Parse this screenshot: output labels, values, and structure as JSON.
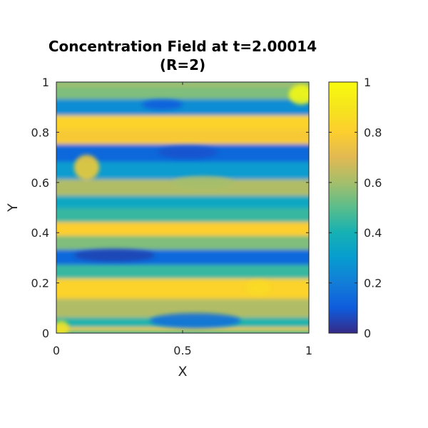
{
  "chart_data": {
    "type": "heatmap",
    "title": "Concentration Field at t=2.00014",
    "subtitle": "(R=2)",
    "xlabel": "X",
    "ylabel": "Y",
    "xlim": [
      0,
      1
    ],
    "ylim": [
      0,
      1
    ],
    "xticks": [
      "0",
      "0.5",
      "1"
    ],
    "yticks": [
      "0",
      "0.2",
      "0.4",
      "0.6",
      "0.8",
      "1"
    ],
    "colorbar": {
      "range": [
        0,
        1
      ],
      "ticks": [
        "0",
        "0.2",
        "0.4",
        "0.6",
        "0.8",
        "1"
      ],
      "colormap": "parula"
    },
    "grid": false,
    "field_bands": [
      {
        "y": 0.01,
        "c": 0.8
      },
      {
        "y": 0.04,
        "c": 0.42
      },
      {
        "y": 0.09,
        "c": 0.62
      },
      {
        "y": 0.19,
        "c": 0.82
      },
      {
        "y": 0.25,
        "c": 0.45
      },
      {
        "y": 0.3,
        "c": 0.14
      },
      {
        "y": 0.37,
        "c": 0.55
      },
      {
        "y": 0.41,
        "c": 0.8
      },
      {
        "y": 0.48,
        "c": 0.45
      },
      {
        "y": 0.52,
        "c": 0.35
      },
      {
        "y": 0.58,
        "c": 0.62
      },
      {
        "y": 0.65,
        "c": 0.3
      },
      {
        "y": 0.72,
        "c": 0.14
      },
      {
        "y": 0.79,
        "c": 0.78
      },
      {
        "y": 0.84,
        "c": 0.82
      },
      {
        "y": 0.9,
        "c": 0.25
      },
      {
        "y": 0.97,
        "c": 0.55
      },
      {
        "y": 1.0,
        "c": 0.6
      }
    ],
    "features": [
      {
        "x": 0.23,
        "y": 0.31,
        "c": 0.05,
        "sx": 0.16,
        "sy": 0.025
      },
      {
        "x": 0.52,
        "y": 0.72,
        "c": 0.08,
        "sx": 0.12,
        "sy": 0.025
      },
      {
        "x": 0.97,
        "y": 0.95,
        "c": 1.0,
        "sx": 0.05,
        "sy": 0.04
      },
      {
        "x": 0.12,
        "y": 0.66,
        "c": 0.8,
        "sx": 0.05,
        "sy": 0.05
      },
      {
        "x": 0.58,
        "y": 0.6,
        "c": 0.6,
        "sx": 0.12,
        "sy": 0.025
      },
      {
        "x": 0.55,
        "y": 0.05,
        "c": 0.15,
        "sx": 0.18,
        "sy": 0.03
      },
      {
        "x": 0.02,
        "y": 0.02,
        "c": 0.9,
        "sx": 0.03,
        "sy": 0.03
      },
      {
        "x": 0.42,
        "y": 0.91,
        "c": 0.1,
        "sx": 0.08,
        "sy": 0.02
      },
      {
        "x": 0.8,
        "y": 0.18,
        "c": 0.85,
        "sx": 0.05,
        "sy": 0.03
      }
    ]
  }
}
